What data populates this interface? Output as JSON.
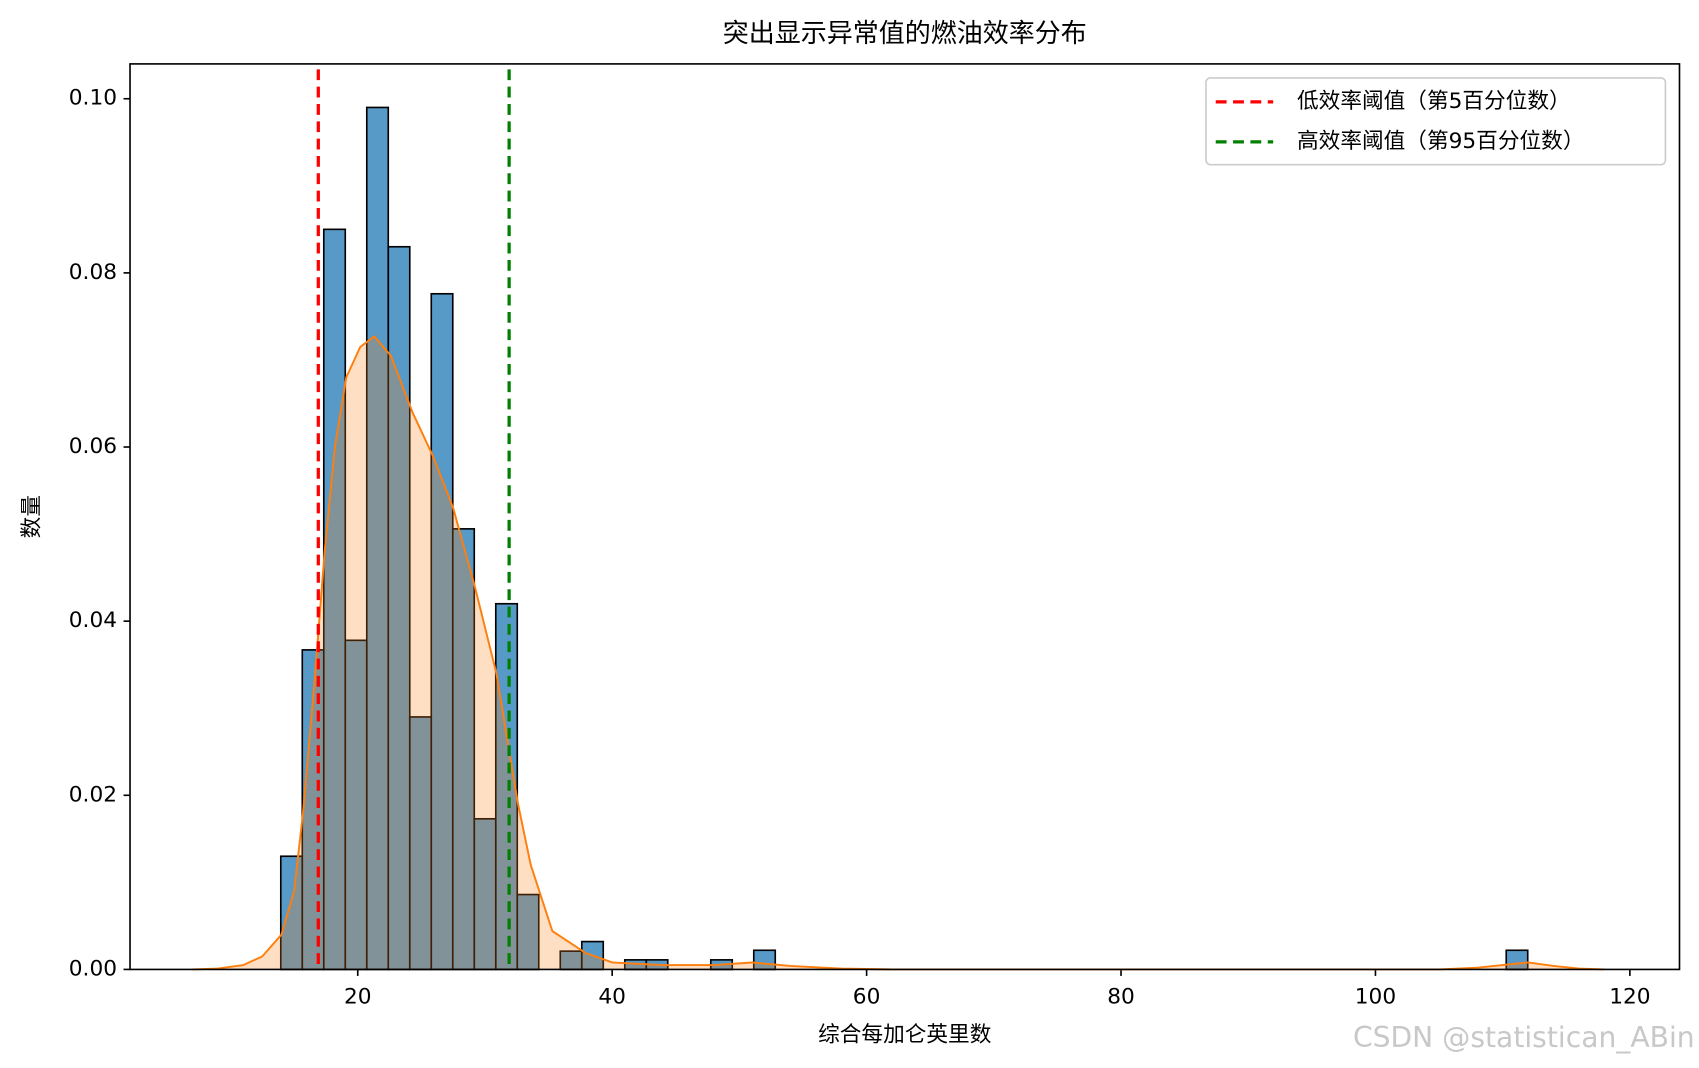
{
  "chart_data": {
    "type": "histogram",
    "title": "突出显示异常值的燃油效率分布",
    "x_label": "综合每加仑英里数",
    "y_label": "数量",
    "bins": [
      13.95,
      15.64,
      17.33,
      19.02,
      20.71,
      22.4,
      24.09,
      25.78,
      27.47,
      29.16,
      30.85,
      32.54,
      34.23,
      35.92,
      37.61,
      39.3,
      40.99,
      42.68,
      44.37,
      46.06,
      47.75,
      49.44,
      51.13,
      52.82,
      54.51,
      56.2,
      57.89,
      59.58,
      61.27,
      62.96,
      64.65,
      66.34,
      68.03,
      69.72,
      71.41,
      73.1,
      74.79,
      76.48,
      78.17,
      79.86,
      81.55,
      83.24,
      84.93,
      86.62,
      88.31,
      90.0,
      91.69,
      93.38,
      95.07,
      96.76,
      98.45,
      100.14,
      101.83,
      103.52,
      105.21,
      106.9,
      108.59,
      110.28,
      111.97
    ],
    "values": [
      0.013,
      0.0367,
      0.085,
      0.0378,
      0.099,
      0.083,
      0.029,
      0.0776,
      0.0506,
      0.0173,
      0.042,
      0.0086,
      0,
      0.0021,
      0.0032,
      0,
      0.0011,
      0.0011,
      0,
      0,
      0.0011,
      0,
      0.0022,
      0,
      0,
      0,
      0,
      0,
      0,
      0,
      0,
      0,
      0,
      0,
      0,
      0,
      0,
      0,
      0,
      0,
      0,
      0,
      0,
      0,
      0,
      0,
      0,
      0,
      0,
      0,
      0,
      0,
      0,
      0,
      0,
      0,
      0,
      0.0022
    ],
    "color": "#1f77b4",
    "kde": {
      "color": "#ff7f0e",
      "x": [
        7,
        9,
        11,
        12.5,
        14,
        15,
        15.7,
        16.6,
        17.4,
        18.2,
        19.1,
        20.2,
        21.3,
        22.6,
        24.3,
        25.9,
        27.5,
        29.2,
        30.9,
        32.6,
        33.6,
        35.3,
        37.9,
        40,
        44,
        48,
        51,
        54,
        58,
        62,
        105,
        108,
        110,
        112,
        114,
        116,
        118
      ],
      "values": [
        0,
        0.0001,
        0.0005,
        0.0015,
        0.004,
        0.009,
        0.018,
        0.033,
        0.048,
        0.06,
        0.068,
        0.0715,
        0.0727,
        0.0705,
        0.064,
        0.059,
        0.053,
        0.044,
        0.034,
        0.019,
        0.012,
        0.0044,
        0.0019,
        0.0008,
        0.0005,
        0.0005,
        0.0008,
        0.0004,
        0.0001,
        0,
        0,
        0.0002,
        0.0005,
        0.0008,
        0.0004,
        0.0001,
        0
      ]
    },
    "thresholds": [
      {
        "name": "低效率阈值（第5百分位数）",
        "x": 16.9,
        "color": "#ff0000"
      },
      {
        "name": "高效率阈值（第95百分位数）",
        "x": 31.9,
        "color": "#008000"
      }
    ],
    "legend": "upper right",
    "xlim": [
      2.1,
      123.9
    ],
    "ylim": [
      0,
      0.104
    ],
    "xticks": [
      20,
      40,
      60,
      80,
      100,
      120
    ],
    "yticks": [
      {
        "value": 0,
        "label": "0.00"
      },
      0.02,
      0.04,
      0.06,
      0.08,
      {
        "value": 0.1,
        "label": "0.10"
      }
    ],
    "watermark": "CSDN @statistican_ABin"
  }
}
